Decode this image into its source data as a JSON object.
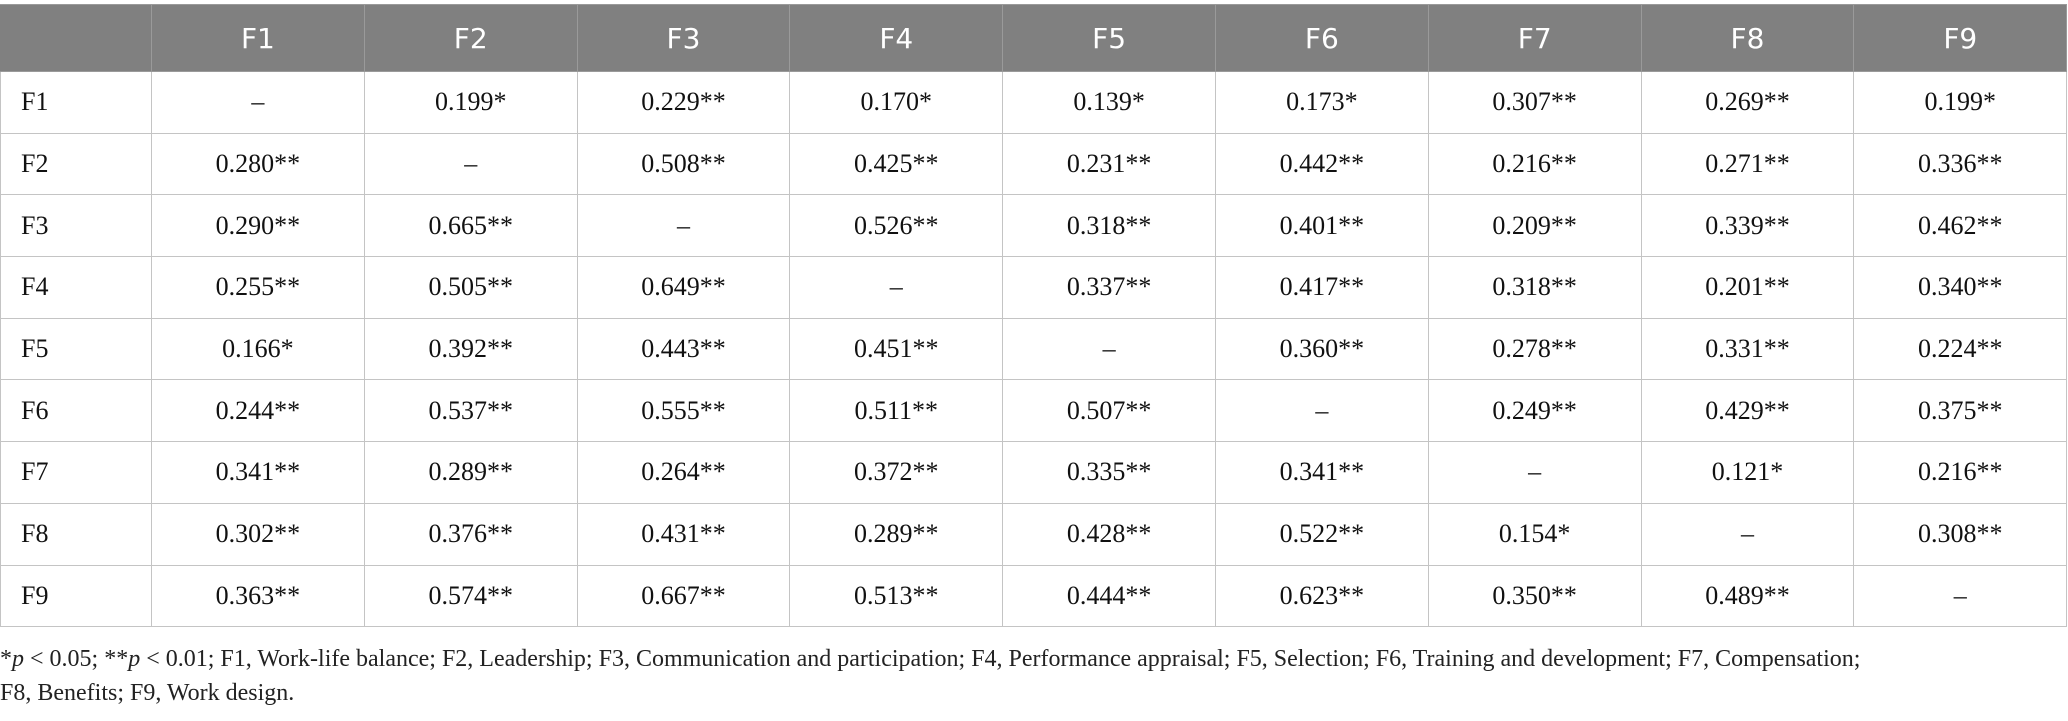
{
  "table": {
    "corner": "",
    "columns": [
      "F1",
      "F2",
      "F3",
      "F4",
      "F5",
      "F6",
      "F7",
      "F8",
      "F9"
    ],
    "rows": [
      {
        "label": "F1",
        "cells": [
          "–",
          "0.199*",
          "0.229**",
          "0.170*",
          "0.139*",
          "0.173*",
          "0.307**",
          "0.269**",
          "0.199*"
        ]
      },
      {
        "label": "F2",
        "cells": [
          "0.280**",
          "–",
          "0.508**",
          "0.425**",
          "0.231**",
          "0.442**",
          "0.216**",
          "0.271**",
          "0.336**"
        ]
      },
      {
        "label": "F3",
        "cells": [
          "0.290**",
          "0.665**",
          "–",
          "0.526**",
          "0.318**",
          "0.401**",
          "0.209**",
          "0.339**",
          "0.462**"
        ]
      },
      {
        "label": "F4",
        "cells": [
          "0.255**",
          "0.505**",
          "0.649**",
          "–",
          "0.337**",
          "0.417**",
          "0.318**",
          "0.201**",
          "0.340**"
        ]
      },
      {
        "label": "F5",
        "cells": [
          "0.166*",
          "0.392**",
          "0.443**",
          "0.451**",
          "–",
          "0.360**",
          "0.278**",
          "0.331**",
          "0.224**"
        ]
      },
      {
        "label": "F6",
        "cells": [
          "0.244**",
          "0.537**",
          "0.555**",
          "0.511**",
          "0.507**",
          "–",
          "0.249**",
          "0.429**",
          "0.375**"
        ]
      },
      {
        "label": "F7",
        "cells": [
          "0.341**",
          "0.289**",
          "0.264**",
          "0.372**",
          "0.335**",
          "0.341**",
          "–",
          "0.121*",
          "0.216**"
        ]
      },
      {
        "label": "F8",
        "cells": [
          "0.302**",
          "0.376**",
          "0.431**",
          "0.289**",
          "0.428**",
          "0.522**",
          "0.154*",
          "–",
          "0.308**"
        ]
      },
      {
        "label": "F9",
        "cells": [
          "0.363**",
          "0.574**",
          "0.667**",
          "0.513**",
          "0.444**",
          "0.623**",
          "0.350**",
          "0.489**",
          "–"
        ]
      }
    ]
  },
  "footnote": {
    "sig1_star": "*",
    "sig1_p": "p",
    "sig1_text": " < 0.05; ",
    "sig2_star": "**",
    "sig2_p": "p",
    "sig2_text": " < 0.01; F1, Work-life balance; F2, Leadership; F3, Communication and participation; F4, Performance appraisal; F5, Selection; F6, Training and development; F7, Compensation;",
    "line2": "F8, Benefits; F9, Work design."
  }
}
